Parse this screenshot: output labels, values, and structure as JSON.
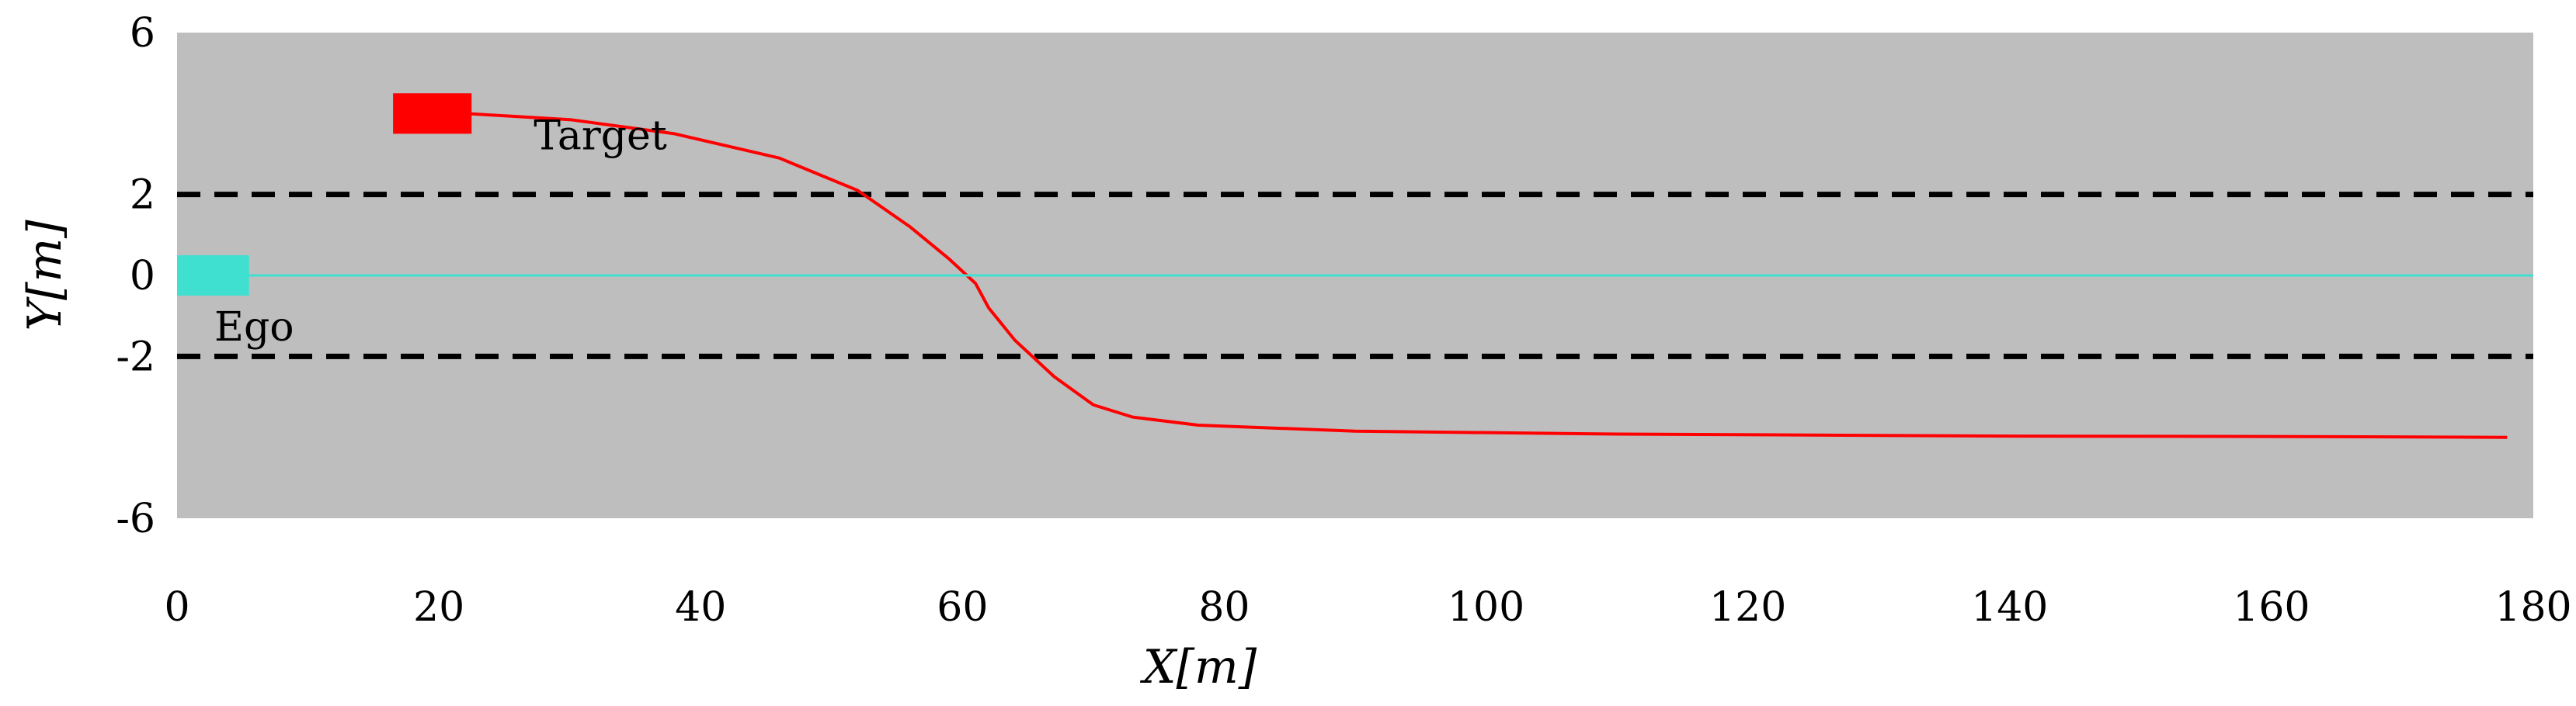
{
  "chart_data": {
    "type": "line",
    "title": "",
    "xlabel": "X[m]",
    "ylabel": "Y[m]",
    "xlim": [
      0,
      180
    ],
    "ylim": [
      -6,
      6
    ],
    "xticks": [
      "0",
      "20",
      "40",
      "60",
      "80",
      "100",
      "120",
      "140",
      "160",
      "180"
    ],
    "xtick_values": [
      0,
      20,
      40,
      60,
      80,
      100,
      120,
      140,
      160,
      180
    ],
    "yticks": [
      "6",
      "2",
      "0",
      "-2",
      "-6"
    ],
    "ytick_values": [
      6,
      2,
      0,
      -2,
      -6
    ],
    "grid": false,
    "background_color": "#bebebe",
    "lane_lines": [
      {
        "name": "upper-lane-boundary",
        "y": 2,
        "style": "dashed",
        "color": "#000000"
      },
      {
        "name": "lower-lane-boundary",
        "y": -2,
        "style": "dashed",
        "color": "#000000"
      }
    ],
    "series": [
      {
        "name": "Target trajectory",
        "color": "#ff0000",
        "x": [
          22,
          30,
          38,
          46,
          52,
          56,
          59,
          61,
          62,
          64,
          67,
          70,
          73,
          78,
          90,
          110,
          140,
          160,
          178
        ],
        "y": [
          4.0,
          3.85,
          3.5,
          2.9,
          2.1,
          1.2,
          0.4,
          -0.2,
          -0.8,
          -1.6,
          -2.5,
          -3.2,
          -3.5,
          -3.7,
          -3.85,
          -3.92,
          -3.97,
          -3.98,
          -4.0
        ]
      },
      {
        "name": "Ego trajectory",
        "color": "#40e0d0",
        "x": [
          0,
          180
        ],
        "y": [
          0,
          0
        ]
      }
    ],
    "vehicles": [
      {
        "label": "Target",
        "color": "#ff0000",
        "x": [
          16.5,
          22.5
        ],
        "y": [
          3.5,
          4.5
        ]
      },
      {
        "label": "Ego",
        "color": "#40e0d0",
        "x": [
          0,
          5.5
        ],
        "y": [
          -0.5,
          0.5
        ]
      }
    ]
  }
}
